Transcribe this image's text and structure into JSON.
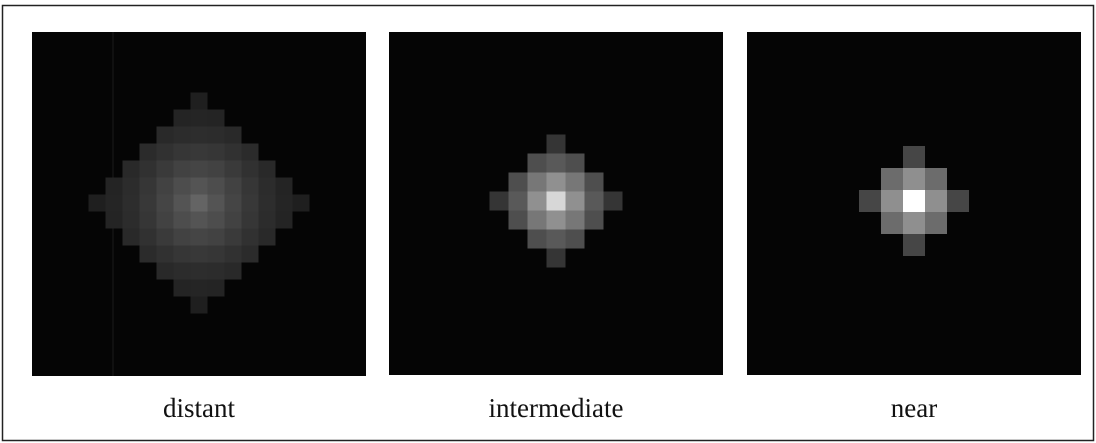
{
  "panels": [
    {
      "label": "distant"
    },
    {
      "label": "intermediate"
    },
    {
      "label": "near"
    }
  ]
}
